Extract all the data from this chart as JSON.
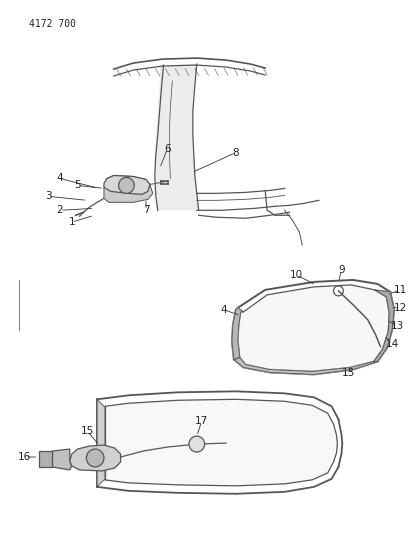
{
  "bg_color": "#ffffff",
  "fig_width": 4.08,
  "fig_height": 5.33,
  "dpi": 100,
  "header_text": "4172 700",
  "header_fontsize": 7,
  "line_color": "#555555",
  "label_color": "#222222",
  "label_fontsize": 7.5
}
